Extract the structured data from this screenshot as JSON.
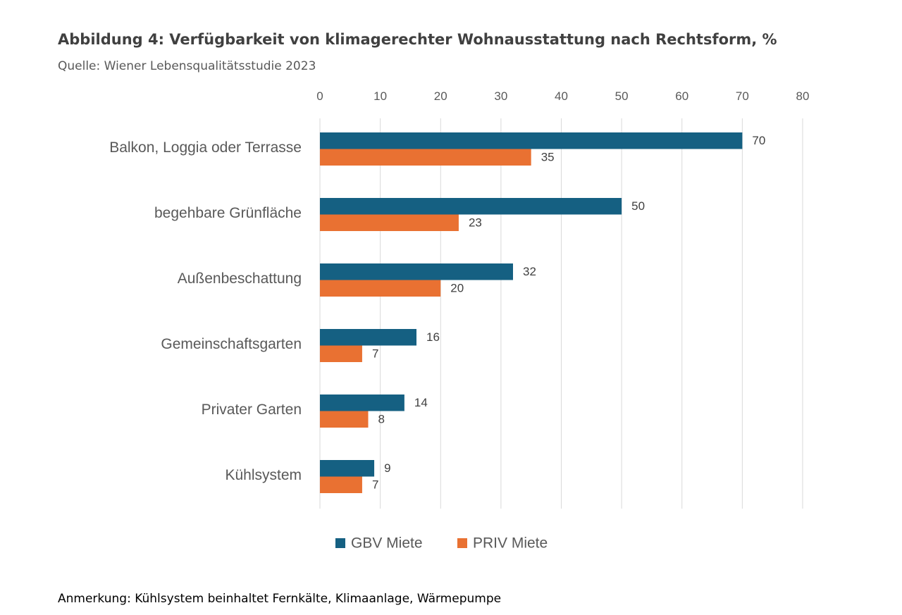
{
  "chart_data": {
    "type": "bar",
    "orientation": "horizontal",
    "title": "Abbildung 4: Verfügbarkeit von klimagerechter Wohnausstattung nach Rechtsform, %",
    "subtitle": "Quelle: Wiener Lebensqualitätsstudie 2023",
    "categories": [
      "Balkon, Loggia oder Terrasse",
      "begehbare Grünfläche",
      "Außenbeschattung",
      "Gemeinschaftsgarten",
      "Privater Garten",
      "Kühlsystem"
    ],
    "series": [
      {
        "name": "GBV Miete",
        "color": "#156082",
        "values": [
          70,
          50,
          32,
          16,
          14,
          9
        ]
      },
      {
        "name": "PRIV Miete",
        "color": "#E97132",
        "values": [
          35,
          23,
          20,
          7,
          8,
          7
        ]
      }
    ],
    "xlim": [
      0,
      80
    ],
    "xticks": [
      0,
      10,
      20,
      30,
      40,
      50,
      60,
      70,
      80
    ],
    "x_axis_position": "top",
    "grid": true,
    "legend_position": "bottom",
    "note": "Anmerkung: Kühlsystem beinhaltet Fernkälte, Klimaanlage, Wärmepumpe"
  },
  "colors": {
    "gridline": "#D9D9D9",
    "text": "#595959"
  }
}
